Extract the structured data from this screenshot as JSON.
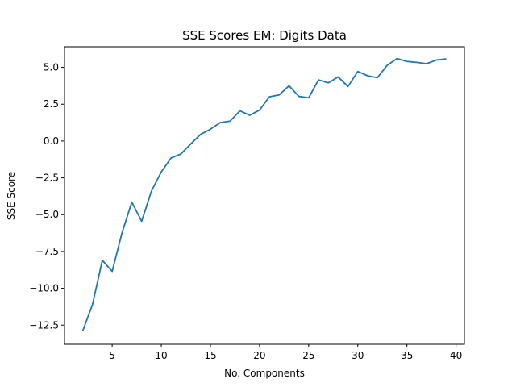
{
  "chart_data": {
    "type": "line",
    "title": "SSE Scores EM: Digits Data",
    "xlabel": "No. Components",
    "ylabel": "SSE Score",
    "xlim": [
      0.15,
      40.85
    ],
    "ylim": [
      -13.8,
      6.4
    ],
    "xticks": [
      5,
      10,
      15,
      20,
      25,
      30,
      35,
      40
    ],
    "yticks": [
      -12.5,
      -10.0,
      -7.5,
      -5.0,
      -2.5,
      0.0,
      2.5,
      5.0
    ],
    "xtick_labels": [
      "5",
      "10",
      "15",
      "20",
      "25",
      "30",
      "35",
      "40"
    ],
    "ytick_labels": [
      "−12.5",
      "−10.0",
      "−7.5",
      "−5.0",
      "−2.5",
      "0.0",
      "2.5",
      "5.0"
    ],
    "grid": false,
    "series": [
      {
        "color": "#1f77b4",
        "x": [
          2,
          3,
          4,
          5,
          6,
          7,
          8,
          9,
          10,
          11,
          12,
          13,
          14,
          15,
          16,
          17,
          18,
          19,
          20,
          21,
          22,
          23,
          24,
          25,
          26,
          27,
          28,
          29,
          30,
          31,
          32,
          33,
          34,
          35,
          36,
          37,
          38,
          39
        ],
        "y": [
          -12.9,
          -11.1,
          -8.1,
          -8.85,
          -6.25,
          -4.15,
          -5.45,
          -3.4,
          -2.1,
          -1.15,
          -0.88,
          -0.2,
          0.45,
          0.8,
          1.25,
          1.35,
          2.05,
          1.75,
          2.1,
          3.0,
          3.13,
          3.75,
          3.03,
          2.93,
          4.15,
          3.95,
          4.35,
          3.7,
          4.72,
          4.43,
          4.3,
          5.15,
          5.6,
          5.4,
          5.34,
          5.25,
          5.5,
          5.57
        ]
      }
    ]
  }
}
